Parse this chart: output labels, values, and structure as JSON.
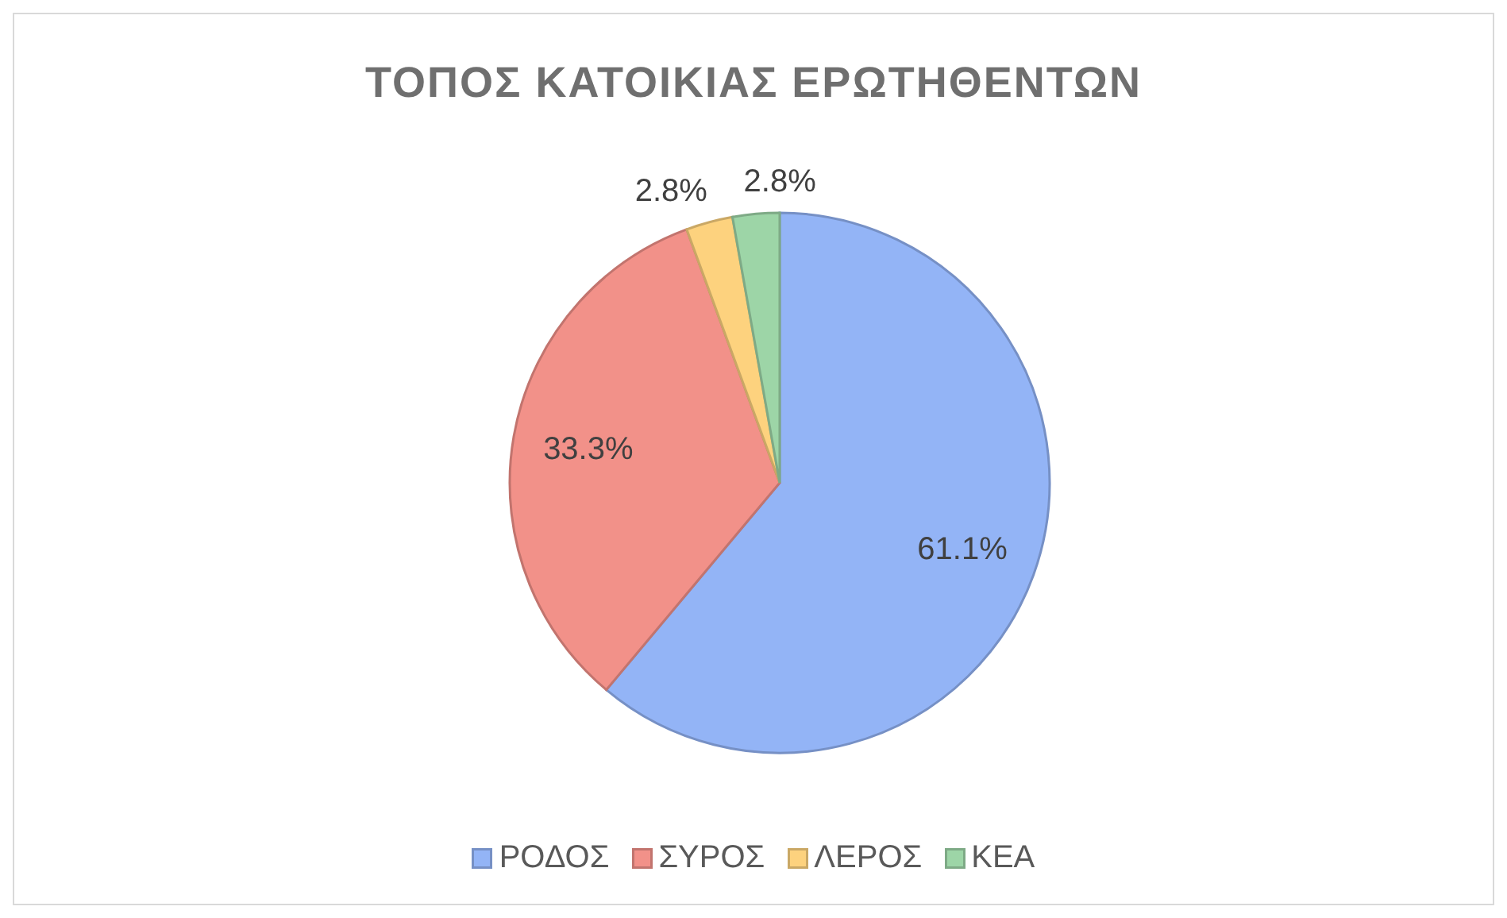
{
  "chart_data": {
    "type": "pie",
    "title": "ΤΟΠΟΣ ΚΑΤΟΙΚΙΑΣ ΕΡΩΤΗΘΕΝΤΩΝ",
    "categories": [
      "ΡΟΔΟΣ",
      "ΣΥΡΟΣ",
      "ΛΕΡΟΣ",
      "ΚΕΑ"
    ],
    "values": [
      61.1,
      33.3,
      2.8,
      2.8
    ],
    "colors": [
      "#93b4f6",
      "#f29189",
      "#fdd27e",
      "#9dd5a7"
    ],
    "value_labels": [
      "61.1%",
      "33.3%",
      "2.8%",
      "2.8%"
    ],
    "legend": "bottom"
  }
}
